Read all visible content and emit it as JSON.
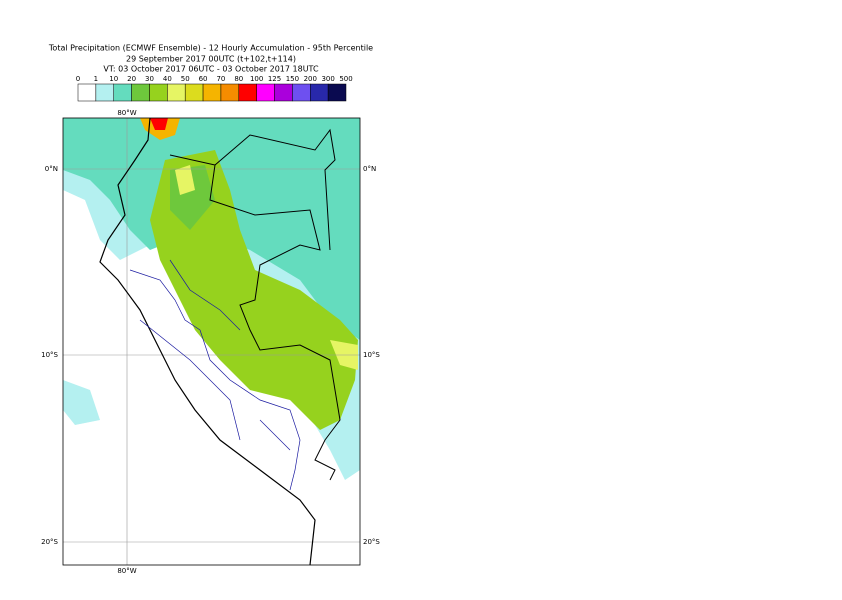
{
  "header": {
    "title": "Total Precipitation (ECMWF Ensemble) - 12 Hourly Accumulation - 95th Percentile",
    "base_time": "29 September 2017 00UTC (t+102,t+114)",
    "valid_time": "VT: 03 October 2017 06UTC - 03 October 2017 18UTC"
  },
  "legend": {
    "labels": [
      0,
      1,
      10,
      20,
      30,
      40,
      50,
      60,
      70,
      80,
      100,
      125,
      150,
      200,
      300,
      500
    ],
    "colors": [
      "#ffffff",
      "#b4f0f0",
      "#64dcbe",
      "#6ec83c",
      "#96d21e",
      "#e6f564",
      "#dcdc1e",
      "#f5b400",
      "#f58c00",
      "#ff0000",
      "#ff00ff",
      "#aa00dc",
      "#6e50f0",
      "#2828aa",
      "#0a0a50"
    ]
  },
  "map": {
    "lon_labels": [
      "80°W"
    ],
    "lat_labels": [
      "0°N",
      "10°S",
      "20°S"
    ]
  }
}
